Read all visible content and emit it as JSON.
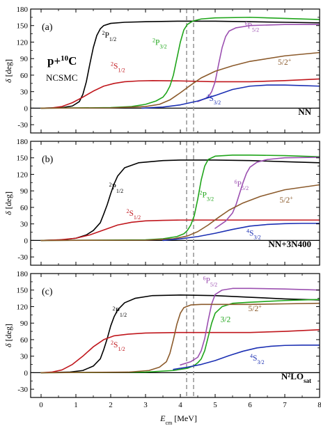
{
  "chart_data": {
    "type": "line",
    "xlabel": "E_cm [MeV]",
    "xlabel_main": "E",
    "xlabel_sub": "cm",
    "xlabel_unit": " [MeV]",
    "ylabel": "δ [deg]",
    "ylabel_symbol": "δ",
    "ylabel_unit": "[deg]",
    "xlim": [
      -0.3,
      8
    ],
    "ylim": [
      -45,
      180
    ],
    "xticks": [
      0,
      1,
      2,
      3,
      4,
      5,
      6,
      7,
      8
    ],
    "yticks": [
      -30,
      0,
      30,
      60,
      90,
      120,
      150,
      180
    ],
    "yticklabels": [
      "-30",
      "0",
      "30",
      "60",
      "90",
      "120",
      "150",
      "180"
    ],
    "grid": false,
    "vertical_lines": [
      4.18,
      4.38
    ],
    "system_label": {
      "main": "p+",
      "sup": "10",
      "end": "C"
    },
    "method_label": "NCSMC",
    "panels": [
      {
        "letter": "(a)",
        "interaction": {
          "main": "NN",
          "sub": ""
        },
        "series": [
          {
            "id": "2P1/2",
            "color": "#000000",
            "label": {
              "sup": "2",
              "base": "P",
              "sub": "1/2"
            },
            "label_pos": [
              1.75,
              128
            ],
            "x": [
              0,
              0.6,
              0.9,
              1.1,
              1.2,
              1.3,
              1.4,
              1.5,
              1.6,
              1.7,
              1.8,
              2.0,
              2.4,
              3,
              4,
              5,
              6,
              7,
              8
            ],
            "y": [
              0,
              1,
              4,
              12,
              25,
              48,
              80,
              110,
              132,
              144,
              150,
              154,
              156,
              157,
              158,
              158,
              157,
              156,
              155
            ]
          },
          {
            "id": "2S1/2",
            "color": "#c0161c",
            "label": {
              "sup": "2",
              "base": "S",
              "sub": "1/2"
            },
            "label_pos": [
              2.0,
              72
            ],
            "x": [
              0,
              0.3,
              0.6,
              0.9,
              1.2,
              1.5,
              1.8,
              2.1,
              2.4,
              2.8,
              3.2,
              4,
              5,
              6,
              7,
              8
            ],
            "y": [
              0,
              0.5,
              3,
              10,
              20,
              31,
              40,
              45,
              48,
              49.5,
              50,
              49.5,
              48,
              48,
              50,
              53
            ]
          },
          {
            "id": "2P3/2",
            "color": "#1fa51a",
            "label": {
              "sup": "2",
              "base": "P",
              "sub": "3/2"
            },
            "label_pos": [
              3.2,
              115
            ],
            "x": [
              0,
              2,
              2.6,
              3.0,
              3.3,
              3.5,
              3.6,
              3.7,
              3.8,
              3.9,
              4.0,
              4.1,
              4.2,
              4.35,
              4.6,
              5,
              6,
              7,
              8
            ],
            "y": [
              0,
              1,
              3,
              7,
              13,
              20,
              28,
              40,
              60,
              90,
              120,
              142,
              152,
              158,
              162,
              164,
              165,
              163,
              161
            ]
          },
          {
            "id": "6P5/2",
            "color": "#9b4fb0",
            "label": {
              "sup": "6",
              "base": "P",
              "sub": "5/2"
            },
            "label_pos": [
              5.85,
              145
            ],
            "x": [
              4.5,
              4.8,
              4.9,
              5.0,
              5.1,
              5.2,
              5.3,
              5.4,
              5.6,
              6,
              7,
              8
            ],
            "y": [
              12,
              20,
              30,
              48,
              80,
              110,
              130,
              140,
              146,
              150,
              152,
              152
            ]
          },
          {
            "id": "5/2+",
            "color": "#8b5a2b",
            "label": {
              "sup": "",
              "base": "5/2",
              "sub": "",
              "tail_sup": "+"
            },
            "label_pos": [
              6.8,
              79
            ],
            "x": [
              0,
              2,
              3,
              3.4,
              3.7,
              4.0,
              4.3,
              4.6,
              5,
              5.5,
              6,
              7,
              8
            ],
            "y": [
              0,
              0.5,
              3,
              7,
              15,
              28,
              42,
              55,
              67,
              77,
              85,
              95,
              101
            ]
          },
          {
            "id": "4S3/2",
            "color": "#1b2fb3",
            "label": {
              "sup": "4",
              "base": "S",
              "sub": "3/2"
            },
            "label_pos": [
              4.75,
              13
            ],
            "x": [
              2.9,
              3.5,
              4.0,
              4.5,
              5.0,
              5.5,
              6,
              6.5,
              7,
              7.5,
              8
            ],
            "y": [
              0,
              2,
              6,
              13,
              23,
              34,
              40,
              42,
              42,
              41,
              40
            ]
          }
        ]
      },
      {
        "letter": "(b)",
        "interaction": {
          "main": "NN+3N400",
          "sub": ""
        },
        "series": [
          {
            "id": "2P1/2",
            "color": "#000000",
            "label": {
              "sup": "2",
              "base": "P",
              "sub": "1/2"
            },
            "label_pos": [
              1.95,
              93
            ],
            "x": [
              0,
              0.6,
              1.0,
              1.3,
              1.5,
              1.7,
              1.8,
              1.9,
              2.0,
              2.1,
              2.2,
              2.4,
              2.8,
              3.5,
              4,
              5,
              6,
              7,
              8
            ],
            "y": [
              0,
              1,
              4,
              10,
              18,
              32,
              48,
              65,
              85,
              103,
              117,
              132,
              141,
              145,
              146,
              146,
              145,
              143,
              141
            ]
          },
          {
            "id": "2S1/2",
            "color": "#c0161c",
            "label": {
              "sup": "2",
              "base": "S",
              "sub": "1/2"
            },
            "label_pos": [
              2.45,
              45
            ],
            "x": [
              0,
              0.5,
              1.0,
              1.4,
              1.8,
              2.2,
              2.6,
              3.0,
              3.5,
              4,
              5,
              6,
              7,
              8
            ],
            "y": [
              0,
              1,
              4,
              10,
              19,
              28,
              33,
              35.5,
              36.5,
              37,
              37,
              37,
              37,
              37
            ]
          },
          {
            "id": "2P3/2",
            "color": "#1fa51a",
            "label": {
              "sup": "2",
              "base": "P",
              "sub": "3/2"
            },
            "label_pos": [
              4.55,
              78
            ],
            "x": [
              0,
              3,
              3.5,
              3.9,
              4.1,
              4.2,
              4.3,
              4.4,
              4.5,
              4.6,
              4.7,
              4.8,
              5,
              5.5,
              6,
              7,
              8
            ],
            "y": [
              0,
              1,
              3,
              7,
              12,
              18,
              28,
              45,
              75,
              110,
              135,
              147,
              153,
              155,
              155,
              154,
              152
            ]
          },
          {
            "id": "6P5/2",
            "color": "#9b4fb0",
            "label": {
              "sup": "6",
              "base": "P",
              "sub": "5/2"
            },
            "label_pos": [
              5.55,
              98
            ],
            "x": [
              5.0,
              5.3,
              5.5,
              5.6,
              5.7,
              5.8,
              5.9,
              6.0,
              6.2,
              6.5,
              7,
              8
            ],
            "y": [
              22,
              35,
              50,
              65,
              85,
              105,
              122,
              133,
              142,
              147,
              150,
              151
            ]
          },
          {
            "id": "5/2+",
            "color": "#8b5a2b",
            "label": {
              "sup": "",
              "base": "5/2",
              "sub": "",
              "tail_sup": "+"
            },
            "label_pos": [
              6.85,
              69
            ],
            "x": [
              0,
              3,
              3.8,
              4.2,
              4.5,
              4.8,
              5.1,
              5.4,
              5.8,
              6.3,
              7,
              8
            ],
            "y": [
              0,
              0.5,
              3,
              8,
              16,
              28,
              42,
              55,
              68,
              80,
              92,
              101
            ]
          },
          {
            "id": "4S3/2",
            "color": "#1b2fb3",
            "label": {
              "sup": "4",
              "base": "S",
              "sub": "3/2"
            },
            "label_pos": [
              5.9,
              9
            ],
            "x": [
              3.5,
              4.0,
              4.5,
              5.0,
              5.5,
              6.0,
              6.5,
              7,
              7.5,
              8
            ],
            "y": [
              0,
              3,
              7,
              13,
              20,
              26,
              29,
              30.5,
              31,
              31
            ]
          }
        ]
      },
      {
        "letter": "(c)",
        "interaction": {
          "main": "N²LO",
          "sub": "sat"
        },
        "series": [
          {
            "id": "2P1/2",
            "color": "#000000",
            "label": {
              "sup": "2",
              "base": "P",
              "sub": "1/2"
            },
            "label_pos": [
              2.05,
              108
            ],
            "x": [
              0,
              0.8,
              1.2,
              1.5,
              1.7,
              1.8,
              1.9,
              2.0,
              2.1,
              2.2,
              2.4,
              2.7,
              3.2,
              4,
              5,
              6,
              7,
              8
            ],
            "y": [
              0,
              1,
              4,
              12,
              25,
              42,
              62,
              85,
              102,
              114,
              127,
              135,
              140,
              141,
              140,
              137,
              134,
              132
            ]
          },
          {
            "id": "2S1/2",
            "color": "#c0161c",
            "label": {
              "sup": "2",
              "base": "S",
              "sub": "1/2"
            },
            "label_pos": [
              2.0,
              46
            ],
            "x": [
              0,
              0.3,
              0.6,
              0.9,
              1.2,
              1.5,
              1.8,
              2.1,
              2.5,
              3,
              4,
              5,
              6,
              7,
              8
            ],
            "y": [
              0,
              1,
              5,
              15,
              30,
              47,
              60,
              67,
              70,
              72,
              73,
              73,
              73,
              75,
              78
            ]
          },
          {
            "id": "2P3/2",
            "color": "#1fa51a",
            "label": {
              "sup": "",
              "base": "3/2",
              "sub": ""
            },
            "label_pos": [
              5.15,
              92
            ],
            "x": [
              0,
              3,
              3.8,
              4.2,
              4.4,
              4.5,
              4.6,
              4.7,
              4.8,
              4.9,
              5.0,
              5.2,
              5.5,
              6,
              7,
              8
            ],
            "y": [
              0,
              1,
              4,
              8,
              13,
              18,
              25,
              40,
              65,
              90,
              108,
              120,
              126,
              128,
              131,
              133
            ]
          },
          {
            "id": "6P5/2",
            "color": "#9b4fb0",
            "label": {
              "sup": "6",
              "base": "P",
              "sub": "5/2"
            },
            "label_pos": [
              4.65,
              163
            ],
            "x": [
              4.0,
              4.3,
              4.5,
              4.6,
              4.7,
              4.8,
              4.9,
              5.0,
              5.2,
              5.5,
              6,
              7,
              8
            ],
            "y": [
              14,
              20,
              28,
              40,
              62,
              95,
              125,
              142,
              150,
              153,
              153,
              152,
              150
            ]
          },
          {
            "id": "5/2+",
            "color": "#8b5a2b",
            "label": {
              "sup": "",
              "base": "5/2",
              "sub": "",
              "tail_sup": "+"
            },
            "label_pos": [
              5.95,
              112
            ],
            "x": [
              0,
              2.5,
              3.1,
              3.4,
              3.6,
              3.7,
              3.8,
              3.9,
              4.0,
              4.1,
              4.3,
              4.6,
              5,
              6,
              7,
              8
            ],
            "y": [
              0,
              1,
              4,
              10,
              20,
              35,
              60,
              88,
              108,
              118,
              123,
              124,
              124,
              124,
              125,
              126
            ]
          },
          {
            "id": "4S3/2",
            "color": "#1b2fb3",
            "label": {
              "sup": "4",
              "base": "S",
              "sub": "3/2"
            },
            "label_pos": [
              6.0,
              22
            ],
            "x": [
              3.8,
              4.2,
              4.6,
              5.0,
              5.4,
              5.8,
              6.2,
              6.6,
              7,
              7.5,
              8
            ],
            "y": [
              6,
              10,
              15,
              22,
              31,
              39,
              45,
              48,
              49.5,
              50,
              50
            ]
          }
        ]
      }
    ]
  }
}
